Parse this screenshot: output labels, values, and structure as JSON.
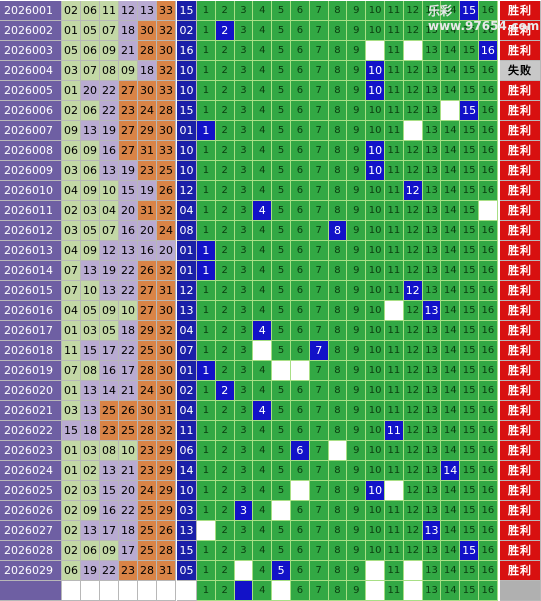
{
  "chart_data": {
    "type": "table",
    "watermark": "乐彩 www.97654.com",
    "labels": {
      "win": "胜利",
      "lose": "失败"
    },
    "rows": [
      {
        "issue": "2026001",
        "nums": [
          "02",
          "06",
          "11",
          "12",
          "13",
          "33"
        ],
        "blue": "15",
        "result": "win"
      },
      {
        "issue": "2026002",
        "nums": [
          "01",
          "05",
          "07",
          "18",
          "30",
          "32"
        ],
        "blue": "02",
        "result": "win"
      },
      {
        "issue": "2026003",
        "nums": [
          "05",
          "06",
          "09",
          "21",
          "28",
          "30"
        ],
        "blue": "16",
        "result": "win"
      },
      {
        "issue": "2026004",
        "nums": [
          "03",
          "07",
          "08",
          "09",
          "18",
          "32"
        ],
        "blue": "10",
        "result": "lose"
      },
      {
        "issue": "2026005",
        "nums": [
          "01",
          "20",
          "22",
          "27",
          "30",
          "33"
        ],
        "blue": "10",
        "result": "win"
      },
      {
        "issue": "2026006",
        "nums": [
          "02",
          "06",
          "22",
          "23",
          "24",
          "28"
        ],
        "blue": "15",
        "result": "win"
      },
      {
        "issue": "2026007",
        "nums": [
          "09",
          "13",
          "19",
          "27",
          "29",
          "30"
        ],
        "blue": "01",
        "result": "win"
      },
      {
        "issue": "2026008",
        "nums": [
          "06",
          "09",
          "16",
          "27",
          "31",
          "33"
        ],
        "blue": "10",
        "result": "win"
      },
      {
        "issue": "2026009",
        "nums": [
          "03",
          "06",
          "13",
          "19",
          "23",
          "25"
        ],
        "blue": "10",
        "result": "win"
      },
      {
        "issue": "2026010",
        "nums": [
          "04",
          "09",
          "10",
          "15",
          "19",
          "26"
        ],
        "blue": "12",
        "result": "win"
      },
      {
        "issue": "2026011",
        "nums": [
          "02",
          "03",
          "04",
          "20",
          "31",
          "32"
        ],
        "blue": "04",
        "result": "win"
      },
      {
        "issue": "2026012",
        "nums": [
          "03",
          "05",
          "07",
          "16",
          "20",
          "24"
        ],
        "blue": "08",
        "result": "win"
      },
      {
        "issue": "2026013",
        "nums": [
          "04",
          "09",
          "12",
          "13",
          "16",
          "20"
        ],
        "blue": "01",
        "result": "win"
      },
      {
        "issue": "2026014",
        "nums": [
          "07",
          "13",
          "19",
          "22",
          "26",
          "32"
        ],
        "blue": "01",
        "result": "win"
      },
      {
        "issue": "2026015",
        "nums": [
          "07",
          "10",
          "13",
          "22",
          "27",
          "31"
        ],
        "blue": "12",
        "result": "win"
      },
      {
        "issue": "2026016",
        "nums": [
          "04",
          "05",
          "09",
          "10",
          "27",
          "30"
        ],
        "blue": "13",
        "result": "win"
      },
      {
        "issue": "2026017",
        "nums": [
          "01",
          "03",
          "05",
          "18",
          "29",
          "32"
        ],
        "blue": "04",
        "result": "win"
      },
      {
        "issue": "2026018",
        "nums": [
          "11",
          "15",
          "17",
          "22",
          "25",
          "30"
        ],
        "blue": "07",
        "result": "win"
      },
      {
        "issue": "2026019",
        "nums": [
          "07",
          "08",
          "16",
          "17",
          "28",
          "30"
        ],
        "blue": "01",
        "result": "win"
      },
      {
        "issue": "2026020",
        "nums": [
          "01",
          "13",
          "14",
          "21",
          "24",
          "30"
        ],
        "blue": "02",
        "result": "win"
      },
      {
        "issue": "2026021",
        "nums": [
          "03",
          "13",
          "25",
          "26",
          "30",
          "31"
        ],
        "blue": "04",
        "result": "win"
      },
      {
        "issue": "2026022",
        "nums": [
          "15",
          "18",
          "23",
          "25",
          "28",
          "32"
        ],
        "blue": "11",
        "result": "win"
      },
      {
        "issue": "2026023",
        "nums": [
          "01",
          "03",
          "08",
          "10",
          "23",
          "29"
        ],
        "blue": "06",
        "result": "win"
      },
      {
        "issue": "2026024",
        "nums": [
          "01",
          "02",
          "13",
          "21",
          "23",
          "29"
        ],
        "blue": "14",
        "result": "win"
      },
      {
        "issue": "2026025",
        "nums": [
          "02",
          "03",
          "15",
          "20",
          "24",
          "29"
        ],
        "blue": "10",
        "result": "win"
      },
      {
        "issue": "2026026",
        "nums": [
          "02",
          "09",
          "16",
          "22",
          "25",
          "29"
        ],
        "blue": "03",
        "result": "win"
      },
      {
        "issue": "2026027",
        "nums": [
          "02",
          "13",
          "17",
          "18",
          "25",
          "26"
        ],
        "blue": "13",
        "result": "win"
      },
      {
        "issue": "2026028",
        "nums": [
          "02",
          "06",
          "09",
          "17",
          "25",
          "28"
        ],
        "blue": "15",
        "result": "win"
      },
      {
        "issue": "2026029",
        "nums": [
          "06",
          "19",
          "22",
          "23",
          "28",
          "31"
        ],
        "blue": "05",
        "result": "win"
      }
    ],
    "white_cells": [
      [],
      [],
      [
        10,
        12
      ],
      [],
      [],
      [
        14
      ],
      [
        12
      ],
      [],
      [],
      [],
      [
        16
      ],
      [],
      [],
      [],
      [],
      [
        11
      ],
      [],
      [
        4
      ],
      [
        5,
        6
      ],
      [],
      [],
      [],
      [
        8
      ],
      [],
      [
        6,
        11
      ],
      [
        5
      ],
      [
        1
      ],
      [],
      [
        3,
        10,
        12
      ]
    ],
    "last_row_hit": 3
  }
}
